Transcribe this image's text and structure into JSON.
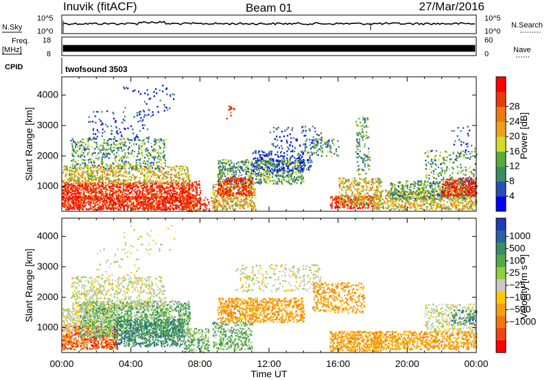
{
  "header": {
    "station": "Inuvik (fitACF)",
    "beam": "Beam 01",
    "date": "27/Mar/2016"
  },
  "strips": {
    "nsky_label": "N.Sky",
    "nsky_ticks": [
      "10^5",
      "10^0"
    ],
    "nsearch_label": "N.Search",
    "nsearch_ticks": [
      "10^5",
      "10^0"
    ],
    "freq_label": "Freq.",
    "freq_unit": "[MHz]",
    "freq_ticks": [
      "18",
      "8"
    ],
    "nave_label": "Nave",
    "nave_ticks": [
      "60",
      "0"
    ],
    "cpid_label": "CPID",
    "cpid_value": "twofsound 3503"
  },
  "chart_data": [
    {
      "type": "heatmap",
      "name": "power-panel",
      "ylabel": "Slant Range [km]",
      "yticks": [
        1000,
        2000,
        3000,
        4000
      ],
      "ylim": [
        180,
        4600
      ],
      "xlim": [
        0,
        24
      ],
      "colorbar": {
        "label": "Power [dB]",
        "ticks": [
          "4",
          "8",
          "12",
          "16",
          "20",
          "24",
          "28"
        ],
        "colors": [
          "#0000ff",
          "#2850b4",
          "#3c8c64",
          "#5aaa3c",
          "#d2dc28",
          "#f0a01e",
          "#f07814",
          "#e63c0a",
          "#ff0000"
        ]
      }
    },
    {
      "type": "heatmap",
      "name": "velocity-panel",
      "ylabel": "Slant Range [km]",
      "yticks": [
        1000,
        2000,
        3000,
        4000
      ],
      "ylim": [
        180,
        4600
      ],
      "xlim": [
        0,
        24
      ],
      "xlabel": "Time UT",
      "xticks": [
        "00:00",
        "04:00",
        "08:00",
        "12:00",
        "16:00",
        "20:00",
        "00:00"
      ],
      "colorbar": {
        "label": "Velocity [m s⁻¹]",
        "ticks": [
          "1000",
          "500",
          "100",
          "25",
          "−25",
          "−100",
          "−500",
          "−1000"
        ],
        "colors": [
          "#1e3cb4",
          "#2864a0",
          "#3c8c64",
          "#50aa46",
          "#8cd23c",
          "#c8c8c8",
          "#ffc800",
          "#f5a014",
          "#f07814",
          "#f04614",
          "#ff0000"
        ]
      }
    }
  ]
}
